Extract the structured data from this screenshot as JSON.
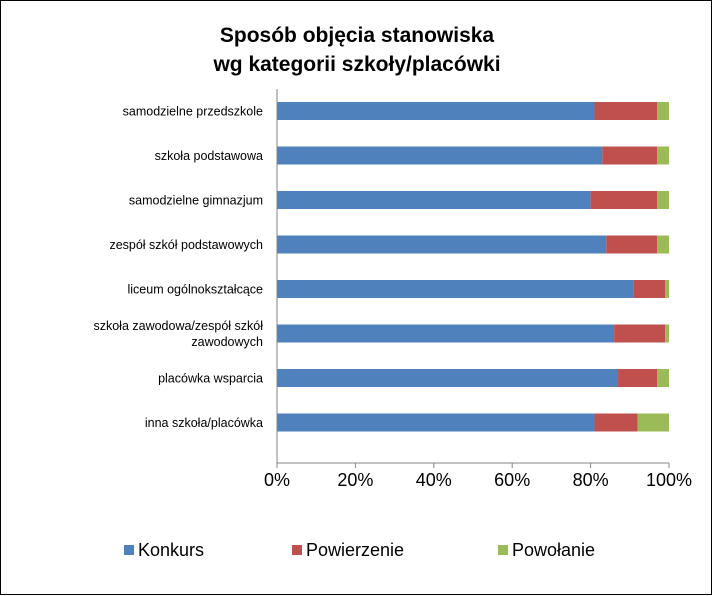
{
  "chart_data": {
    "type": "bar",
    "orientation": "horizontal",
    "stacked": "percent",
    "title_lines": [
      "Sposób objęcia stanowiska",
      "wg kategorii szkoły/placówki"
    ],
    "categories": [
      [
        "samodzielne przedszkole"
      ],
      [
        "szkoła podstawowa"
      ],
      [
        "samodzielne gimnazjum"
      ],
      [
        "zespół szkół podstawowych"
      ],
      [
        "liceum ogólnokształcące"
      ],
      [
        "szkoła zawodowa/zespół szkół",
        "zawodowych"
      ],
      [
        "placówka wsparcia"
      ],
      [
        "inna szkoła/placówka"
      ]
    ],
    "series": [
      {
        "name": "Konkurs",
        "color": "#4F81BD",
        "values": [
          81,
          83,
          80,
          84,
          90,
          86,
          87,
          81
        ]
      },
      {
        "name": "Powierzenie",
        "color": "#C0504D",
        "values": [
          16,
          14,
          17,
          13,
          8,
          13,
          10,
          11
        ]
      },
      {
        "name": "Powołanie",
        "color": "#9BBB59",
        "values": [
          3,
          3,
          3,
          3,
          1,
          1,
          3,
          8
        ]
      }
    ],
    "xlim": [
      0,
      100
    ],
    "x_ticks": [
      "0%",
      "20%",
      "40%",
      "60%",
      "80%",
      "100%"
    ],
    "grid": false,
    "legend_position": "bottom"
  }
}
